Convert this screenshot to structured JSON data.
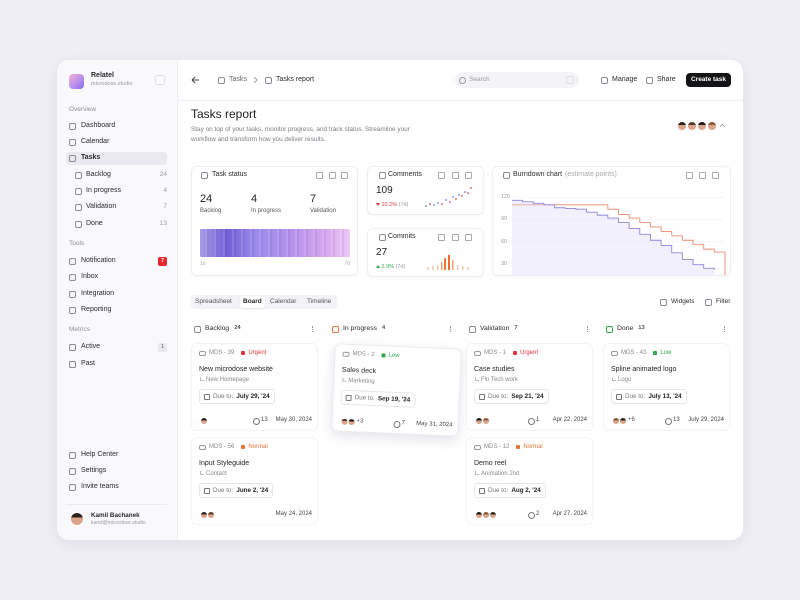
{
  "sidebar": {
    "brand": "Relatel",
    "brand_sub": "microdose.studio",
    "overview_heading": "Overview",
    "overview_items": [
      "Dashboard",
      "Calendar",
      "Tasks"
    ],
    "task_items": [
      {
        "label": "Backlog",
        "count": "24"
      },
      {
        "label": "In progress",
        "count": "4"
      },
      {
        "label": "Validation",
        "count": "7"
      },
      {
        "label": "Done",
        "count": "13"
      }
    ],
    "tools_heading": "Tools",
    "tool_items": [
      {
        "label": "Notification",
        "badge": "7"
      },
      {
        "label": "Inbox"
      },
      {
        "label": "Integration"
      },
      {
        "label": "Reporting"
      }
    ],
    "metrics_heading": "Metrics",
    "metric_items": [
      {
        "label": "Active",
        "badge": "1"
      },
      {
        "label": "Past"
      }
    ],
    "footer_items": [
      "Help Center",
      "Settings",
      "Invite teams"
    ],
    "user": {
      "name": "Kamil Bachanek",
      "email": "kamil@microdose.studio"
    }
  },
  "topbar": {
    "breadcrumb": [
      "Tasks",
      "Tasks report"
    ],
    "search_placeholder": "Search",
    "actions": [
      "Manage",
      "Share"
    ],
    "primary_action": "Create task"
  },
  "header": {
    "title": "Tasks report",
    "description": "Stay on top of your tasks, monitor progress, and track status. Streamline your workflow and transform how you deliver results."
  },
  "widgets": {
    "task_status": {
      "title": "Task status",
      "stats": [
        {
          "value": "24",
          "label": "Backlog"
        },
        {
          "value": "4",
          "label": "In progress"
        },
        {
          "value": "7",
          "label": "Validation"
        }
      ],
      "axis": [
        "1d",
        "7d"
      ]
    },
    "comments": {
      "title": "Comments",
      "value": "109",
      "change": "10.2%",
      "period": "(7d)",
      "trend": "down"
    },
    "commits": {
      "title": "Commits",
      "value": "27",
      "change": "2.9%",
      "period": "(7d)",
      "trend": "up"
    },
    "burndown": {
      "title": "Burndown chart",
      "subtitle": "(estimate points)",
      "xlim": [
        0,
        20
      ],
      "ylim": [
        15,
        130
      ],
      "yticks": [
        120,
        90,
        60,
        30
      ],
      "grid": true,
      "series": [
        {
          "color": "#ea8a70",
          "values": [
            110,
            110,
            110,
            110,
            110,
            110,
            110,
            110,
            110,
            104,
            97,
            92,
            86,
            80,
            74,
            68,
            62,
            56,
            50,
            46,
            15
          ]
        },
        {
          "color": "#8f86d8",
          "area": true,
          "values": [
            116,
            114,
            112,
            110,
            106,
            105,
            104,
            100,
            96,
            92,
            86,
            78,
            70,
            62,
            55,
            45,
            36,
            29,
            24,
            22,
            null
          ]
        }
      ]
    }
  },
  "view": {
    "tabs": [
      "Spreadsheet",
      "Board",
      "Calendar",
      "Timeline"
    ],
    "active_tab": 1,
    "actions": [
      "Widgets",
      "Filter"
    ]
  },
  "board": {
    "due_prefix": "Due to:",
    "columns": [
      {
        "name": "Backlog",
        "count": "24",
        "cards": [
          {
            "id": "MDS - 39",
            "priority": "Urgent",
            "title": "New microdose website",
            "sub": "New Homepage",
            "due": "July 29, '24",
            "comments": "13",
            "date": "May 30, 2024"
          },
          {
            "id": "MDS - 56",
            "priority": "Normal",
            "title": "Input Styleguide",
            "sub": "Contact",
            "due": "June 2, '24",
            "date": "May 24, 2024"
          }
        ]
      },
      {
        "name": "In progress",
        "count": "4",
        "cards": [
          {
            "id": "MDS - 2",
            "priority": "Low",
            "title": "Sales deck",
            "sub": "Marketing",
            "due": "Sep 19, '24",
            "extra": "+3",
            "comments": "7",
            "date": "May 31, 2024"
          }
        ]
      },
      {
        "name": "Validation",
        "count": "7",
        "cards": [
          {
            "id": "MDS - 1",
            "priority": "Urgent",
            "title": "Case studies",
            "sub": "Fin Tech work",
            "due": "Sep 21, '24",
            "comments": "1",
            "date": "Apr 22, 2024"
          },
          {
            "id": "MDS - 12",
            "priority": "Normal",
            "title": "Demo reel",
            "sub": "Animation 2nd",
            "due": "Aug 2, '24",
            "comments": "2",
            "date": "Apr 27, 2024"
          }
        ]
      },
      {
        "name": "Done",
        "count": "13",
        "cards": [
          {
            "id": "MDS - 43",
            "priority": "Low",
            "title": "Spline animated logo",
            "sub": "Logo",
            "due": "July 13, '24",
            "extra": "+6",
            "comments": "13",
            "date": "July 29, 2024"
          }
        ]
      }
    ]
  }
}
